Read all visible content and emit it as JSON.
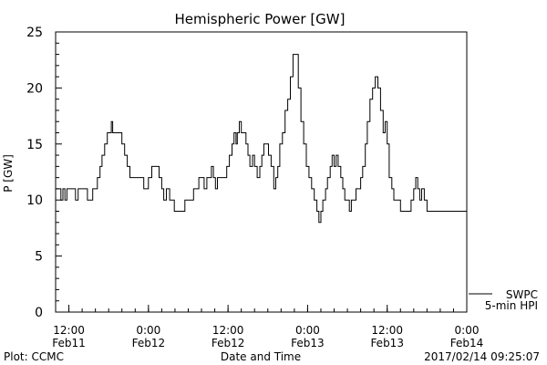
{
  "chart_data": {
    "type": "line",
    "title": "Hemispheric Power [GW]",
    "ylabel": "P [GW]",
    "xlabel": "Date and Time",
    "ylim": [
      0,
      25
    ],
    "yticks": [
      0,
      5,
      10,
      15,
      20,
      25
    ],
    "xlim_hours": [
      -2,
      60
    ],
    "xticks": [
      {
        "hour": 0,
        "time": "12:00",
        "date": "Feb11"
      },
      {
        "hour": 12,
        "time": "0:00",
        "date": "Feb12"
      },
      {
        "hour": 24,
        "time": "12:00",
        "date": "Feb12"
      },
      {
        "hour": 36,
        "time": "0:00",
        "date": "Feb13"
      },
      {
        "hour": 48,
        "time": "12:00",
        "date": "Feb13"
      },
      {
        "hour": 60,
        "time": "0:00",
        "date": "Feb14"
      }
    ],
    "legend": {
      "line1": "SWPC",
      "line2": "5-min HPI",
      "position": "bottom-right"
    },
    "grid": false,
    "series": [
      {
        "name": "SWPC 5-min HPI",
        "points": [
          [
            -2.0,
            11
          ],
          [
            -1.5,
            11
          ],
          [
            -1.2,
            10
          ],
          [
            -0.9,
            11
          ],
          [
            -0.6,
            10
          ],
          [
            -0.3,
            11
          ],
          [
            0.3,
            11
          ],
          [
            0.8,
            11
          ],
          [
            1.0,
            10
          ],
          [
            1.4,
            11
          ],
          [
            2.0,
            11
          ],
          [
            2.5,
            11
          ],
          [
            2.8,
            10
          ],
          [
            3.3,
            10
          ],
          [
            3.6,
            11
          ],
          [
            4.0,
            11
          ],
          [
            4.3,
            12
          ],
          [
            4.7,
            13
          ],
          [
            5.0,
            14
          ],
          [
            5.4,
            15
          ],
          [
            5.8,
            16
          ],
          [
            6.1,
            16
          ],
          [
            6.4,
            17
          ],
          [
            6.6,
            16
          ],
          [
            7.0,
            16
          ],
          [
            7.6,
            16
          ],
          [
            8.0,
            15
          ],
          [
            8.4,
            14
          ],
          [
            8.8,
            13
          ],
          [
            9.2,
            12
          ],
          [
            9.8,
            12
          ],
          [
            10.4,
            12
          ],
          [
            11.0,
            12
          ],
          [
            11.3,
            11
          ],
          [
            11.6,
            11
          ],
          [
            12.0,
            12
          ],
          [
            12.5,
            13
          ],
          [
            13.2,
            13
          ],
          [
            13.6,
            12
          ],
          [
            14.0,
            11
          ],
          [
            14.3,
            10
          ],
          [
            14.7,
            11
          ],
          [
            15.2,
            10
          ],
          [
            15.6,
            10
          ],
          [
            15.9,
            9
          ],
          [
            16.4,
            9
          ],
          [
            17.2,
            9
          ],
          [
            17.5,
            10
          ],
          [
            18.0,
            10
          ],
          [
            18.4,
            10
          ],
          [
            18.8,
            11
          ],
          [
            19.2,
            11
          ],
          [
            19.6,
            12
          ],
          [
            20.0,
            12
          ],
          [
            20.4,
            11
          ],
          [
            20.8,
            12
          ],
          [
            21.2,
            12
          ],
          [
            21.5,
            13
          ],
          [
            21.8,
            12
          ],
          [
            22.1,
            11
          ],
          [
            22.4,
            12
          ],
          [
            22.8,
            12
          ],
          [
            23.4,
            12
          ],
          [
            23.8,
            13
          ],
          [
            24.2,
            14
          ],
          [
            24.6,
            15
          ],
          [
            24.9,
            16
          ],
          [
            25.2,
            15
          ],
          [
            25.4,
            16
          ],
          [
            25.7,
            17
          ],
          [
            26.0,
            16
          ],
          [
            26.4,
            16
          ],
          [
            26.7,
            15
          ],
          [
            27.0,
            14
          ],
          [
            27.3,
            13
          ],
          [
            27.7,
            14
          ],
          [
            28.0,
            13
          ],
          [
            28.4,
            12
          ],
          [
            28.8,
            13
          ],
          [
            29.1,
            14
          ],
          [
            29.4,
            15
          ],
          [
            29.8,
            15
          ],
          [
            30.1,
            14
          ],
          [
            30.5,
            13
          ],
          [
            30.9,
            11
          ],
          [
            31.2,
            12
          ],
          [
            31.5,
            13
          ],
          [
            31.8,
            15
          ],
          [
            32.2,
            16
          ],
          [
            32.6,
            18
          ],
          [
            33.0,
            19
          ],
          [
            33.4,
            21
          ],
          [
            33.8,
            23
          ],
          [
            34.2,
            23
          ],
          [
            34.6,
            20
          ],
          [
            35.0,
            17
          ],
          [
            35.4,
            15
          ],
          [
            35.8,
            13
          ],
          [
            36.2,
            12
          ],
          [
            36.6,
            11
          ],
          [
            37.0,
            10
          ],
          [
            37.4,
            9
          ],
          [
            37.7,
            8
          ],
          [
            38.0,
            9
          ],
          [
            38.3,
            10
          ],
          [
            38.7,
            11
          ],
          [
            39.0,
            12
          ],
          [
            39.4,
            13
          ],
          [
            39.7,
            14
          ],
          [
            40.0,
            13
          ],
          [
            40.3,
            14
          ],
          [
            40.6,
            13
          ],
          [
            41.0,
            12
          ],
          [
            41.3,
            11
          ],
          [
            41.6,
            10
          ],
          [
            42.0,
            10
          ],
          [
            42.3,
            9
          ],
          [
            42.6,
            10
          ],
          [
            43.0,
            10
          ],
          [
            43.3,
            11
          ],
          [
            43.7,
            11
          ],
          [
            44.0,
            12
          ],
          [
            44.3,
            13
          ],
          [
            44.7,
            15
          ],
          [
            45.0,
            17
          ],
          [
            45.4,
            19
          ],
          [
            45.8,
            20
          ],
          [
            46.2,
            21
          ],
          [
            46.6,
            20
          ],
          [
            47.0,
            18
          ],
          [
            47.4,
            16
          ],
          [
            47.7,
            17
          ],
          [
            48.0,
            15
          ],
          [
            48.3,
            12
          ],
          [
            48.7,
            11
          ],
          [
            49.0,
            10
          ],
          [
            49.4,
            10
          ],
          [
            50.0,
            9
          ],
          [
            50.5,
            9
          ],
          [
            51.2,
            9
          ],
          [
            51.6,
            10
          ],
          [
            52.0,
            11
          ],
          [
            52.3,
            12
          ],
          [
            52.6,
            11
          ],
          [
            52.9,
            10
          ],
          [
            53.2,
            11
          ],
          [
            53.6,
            10
          ],
          [
            54.0,
            9
          ],
          [
            54.4,
            9
          ]
        ]
      }
    ]
  },
  "footer": {
    "left": "Plot: CCMC",
    "right": "2017/02/14 09:25:07"
  }
}
